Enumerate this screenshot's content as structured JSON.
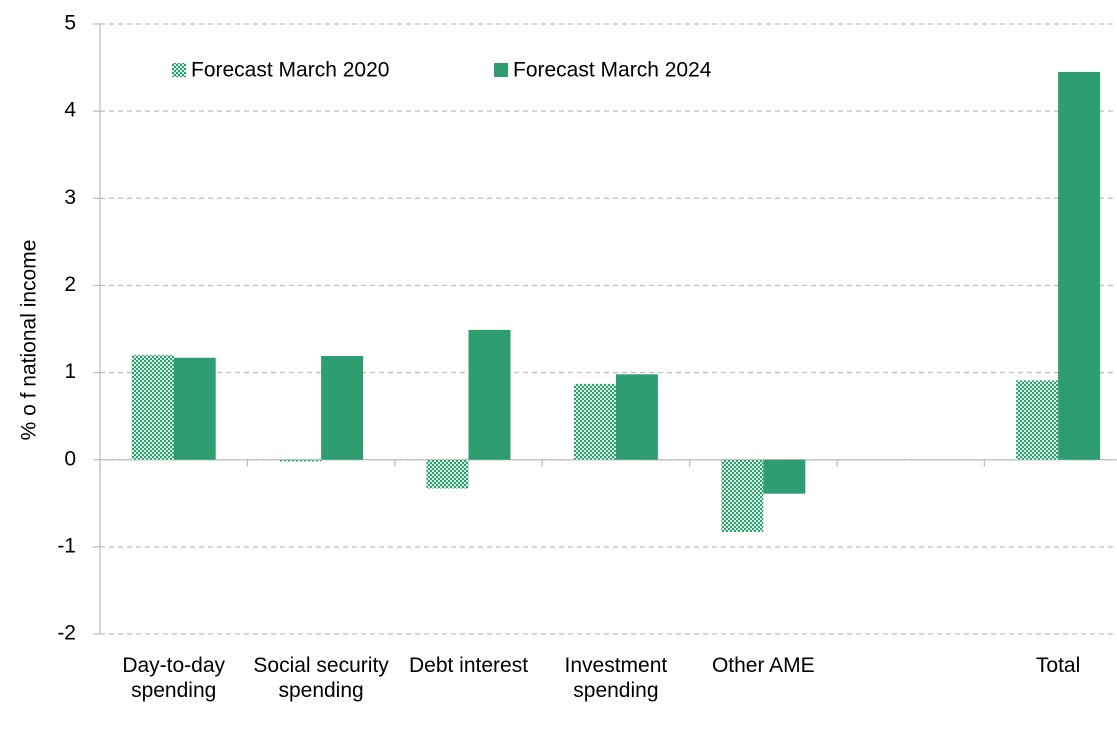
{
  "chart_data": {
    "type": "bar",
    "y_label": "% o f national income",
    "categories": [
      "Day-to-day spending",
      "Social security spending",
      "Debt interest",
      "Investment spending",
      "Other AME",
      null,
      "Total"
    ],
    "series": [
      {
        "name": "Forecast March 2020",
        "color": "#2e9e72",
        "fill_style": "checkered",
        "values": [
          1.2,
          -0.02,
          -0.33,
          0.87,
          -0.83,
          null,
          0.91
        ]
      },
      {
        "name": "Forecast March 2024",
        "color": "#2e9e72",
        "fill_style": "solid",
        "values": [
          1.17,
          1.19,
          1.49,
          0.98,
          -0.39,
          null,
          4.45
        ]
      }
    ],
    "ylim": [
      -2,
      5
    ],
    "yticks": [
      -2,
      -1,
      0,
      1,
      2,
      3,
      4,
      5
    ],
    "grid": true,
    "legend": "upper left"
  }
}
